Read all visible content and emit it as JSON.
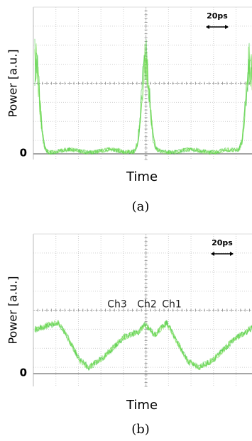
{
  "panels": [
    {
      "y_label": "Power [a.u.]",
      "zero_label": "0",
      "x_label": "Time",
      "scale_label": "20ps",
      "caption": "(a)"
    },
    {
      "y_label": "Power [a.u.]",
      "zero_label": "0",
      "x_label": "Time",
      "scale_label": "20ps",
      "caption": "(b)",
      "channel_labels": [
        "Ch3",
        "Ch2",
        "Ch1"
      ]
    }
  ]
}
